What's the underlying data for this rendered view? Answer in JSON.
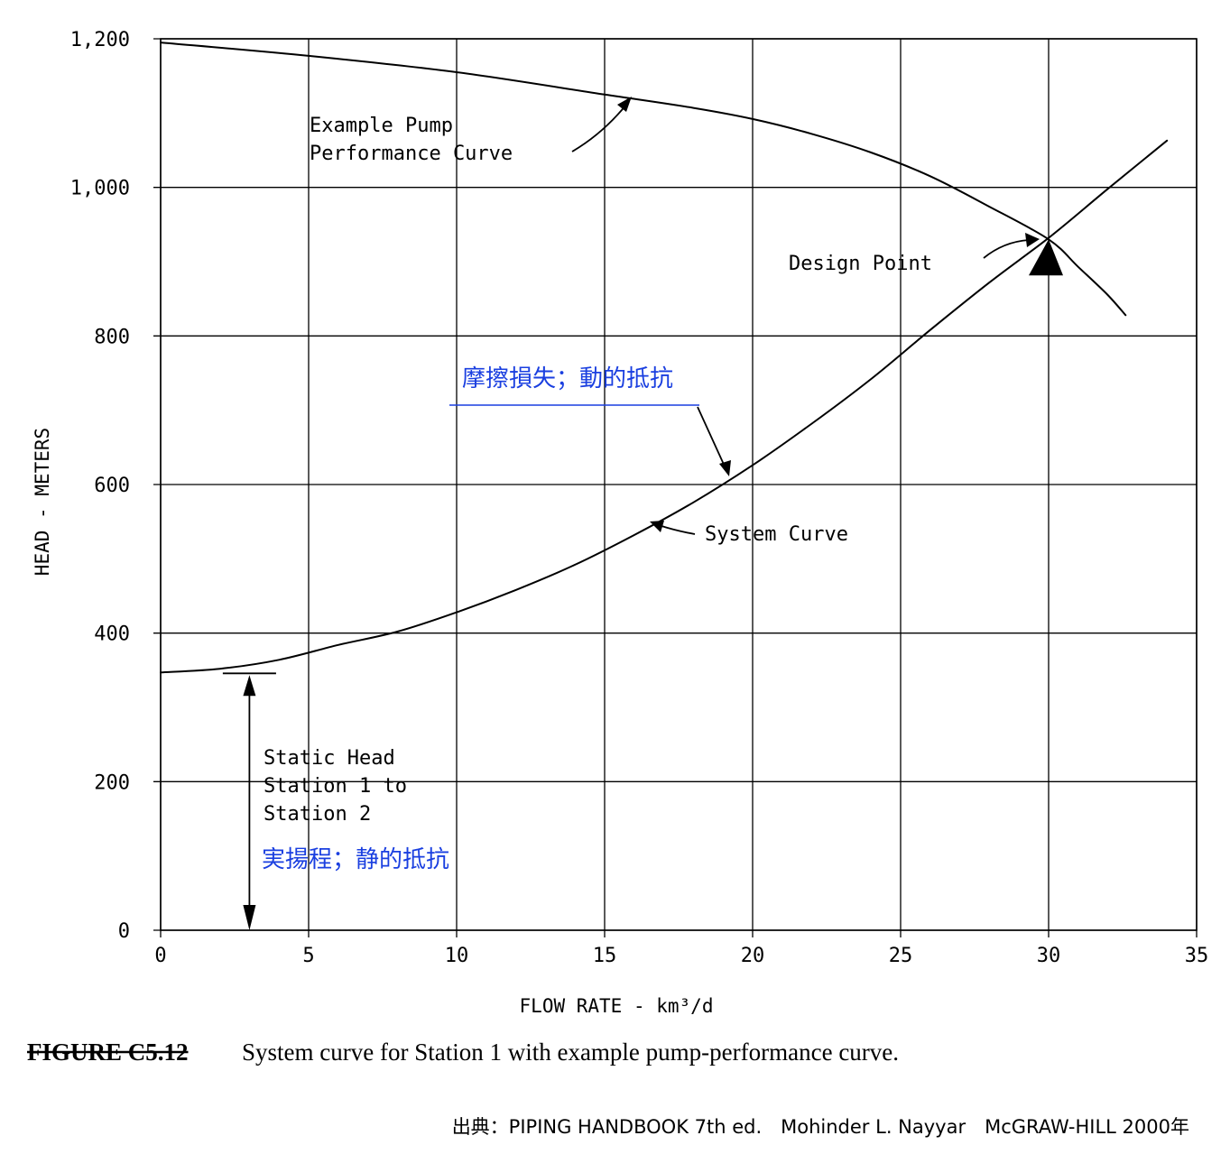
{
  "chart_data": {
    "type": "line",
    "xlabel": "FLOW RATE - km³/d",
    "ylabel": "HEAD - METERS",
    "xlim": [
      0,
      35
    ],
    "ylim": [
      0,
      1200
    ],
    "x_ticks": [
      "0",
      "5",
      "10",
      "15",
      "20",
      "25",
      "30",
      "35"
    ],
    "y_ticks": [
      "0",
      "200",
      "400",
      "600",
      "800",
      "1,000",
      "1,200"
    ],
    "grid": true,
    "series": [
      {
        "name": "Example Pump Performance Curve",
        "x": [
          0,
          5,
          10,
          15,
          18,
          20,
          22,
          24,
          26,
          28,
          30,
          31,
          32,
          32.6
        ],
        "y": [
          1195,
          1177,
          1155,
          1125,
          1107,
          1092,
          1072,
          1047,
          1015,
          974,
          930,
          893,
          855,
          828
        ]
      },
      {
        "name": "System Curve",
        "x": [
          0,
          2,
          4,
          6,
          8,
          10,
          12,
          14,
          16,
          18,
          20,
          22,
          24,
          26,
          28,
          30,
          32,
          34
        ],
        "y": [
          347,
          352,
          364,
          384,
          402,
          428,
          458,
          492,
          532,
          576,
          626,
          682,
          742,
          808,
          872,
          932,
          998,
          1063
        ]
      }
    ],
    "annotations": {
      "pump_label_line1": "Example Pump",
      "pump_label_line2": "Performance Curve",
      "design_point": "Design Point",
      "system_curve": "System Curve",
      "static_line1": "Static Head",
      "static_line2": "Station 1 to",
      "static_line3": "Station 2",
      "friction_jp": "摩擦損失；動的抵抗",
      "static_jp": "実揚程；静的抵抗"
    },
    "design_point_xy": [
      30,
      930
    ],
    "static_head_value": 347
  },
  "caption": {
    "tag": "FIGURE C5.12",
    "text": "System curve for Station 1 with example pump-performance curve."
  },
  "source": "出典：PIPING HANDBOOK 7th ed.　Mohinder L. Nayyar　McGRAW-HILL 2000年"
}
